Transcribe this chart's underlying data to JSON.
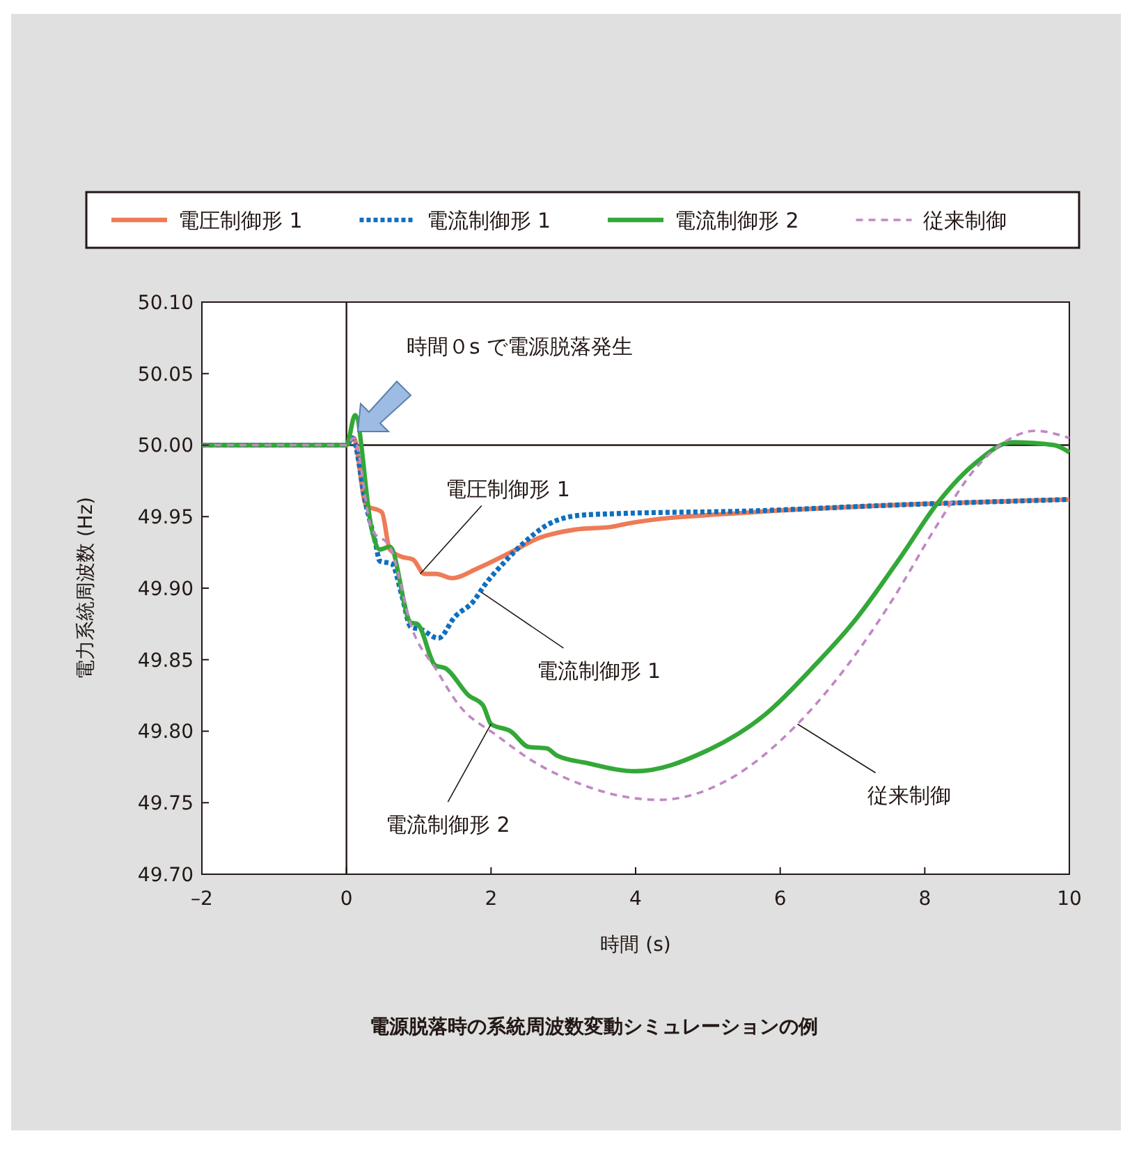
{
  "chart_data": {
    "type": "line",
    "title": "電源脱落時の系統周波数変動シミュレーションの例",
    "xlabel": "時間 (s)",
    "ylabel": "電力系統周波数 (Hz)",
    "xlim": [
      -2,
      10
    ],
    "xticks": [
      {
        "value": -2,
        "label": "–2"
      },
      0,
      2,
      4,
      6,
      8,
      10
    ],
    "ylim": [
      49.7,
      50.1
    ],
    "yticks": [
      {
        "value": 49.7,
        "label": "49.70"
      },
      49.75,
      {
        "value": 49.8,
        "label": "49.80"
      },
      49.85,
      {
        "value": 49.9,
        "label": "49.90"
      },
      49.95,
      {
        "value": 50.0,
        "label": "50.00"
      },
      50.05,
      {
        "value": 50.1,
        "label": "50.10"
      }
    ],
    "grid": false,
    "legend": "top",
    "ref_lines": [
      {
        "axis": "y",
        "value": 50.0,
        "color": "#231815"
      },
      {
        "axis": "x",
        "value": 0,
        "color": "#231815"
      }
    ],
    "annotations": [
      "時間０s で電源脱落発生",
      {
        "text": "電圧制御形 1",
        "x": 1.02,
        "y": 49.91
      },
      {
        "text": "電流制御形 1",
        "x": 1.87,
        "y": 49.897
      },
      {
        "text": "電流制御形 2",
        "x": 2.0,
        "y": 49.805
      },
      {
        "text": "従来制御",
        "x": 6.24,
        "y": 49.805
      }
    ],
    "series": [
      {
        "name": "電圧制御形 1",
        "color": "#ee7b57",
        "line_style": "solid",
        "x": [
          -2,
          0,
          0.1,
          0.27,
          0.49,
          0.6,
          0.76,
          0.92,
          1.08,
          1.24,
          1.46,
          1.82,
          2.27,
          2.66,
          3.17,
          3.68,
          3.87,
          5.6,
          7.53,
          10
        ],
        "values": [
          50.0,
          50.0,
          50.005,
          49.958,
          49.953,
          49.927,
          49.922,
          49.92,
          49.91,
          49.91,
          49.907,
          49.914,
          49.925,
          49.935,
          49.941,
          49.943,
          49.945,
          49.953,
          49.958,
          49.962
        ]
      },
      {
        "name": "電流制御形 1",
        "color": "#0f6fbf",
        "line_style": "dotted",
        "x": [
          -2,
          0,
          0.08,
          0.27,
          0.4,
          0.46,
          0.63,
          0.76,
          0.89,
          1.04,
          1.27,
          1.5,
          1.76,
          1.91,
          2.2,
          2.46,
          2.77,
          3.24,
          3.68,
          5.6,
          7.53,
          10
        ],
        "values": [
          50.0,
          50.0,
          50.005,
          49.958,
          49.932,
          49.919,
          49.917,
          49.896,
          49.873,
          49.871,
          49.865,
          49.88,
          49.891,
          49.902,
          49.919,
          49.932,
          49.944,
          49.951,
          49.952,
          49.954,
          49.958,
          49.962
        ]
      },
      {
        "name": "電流制御形 2",
        "color": "#33a838",
        "line_style": "solid",
        "x": [
          -2,
          0,
          0.12,
          0.35,
          0.46,
          0.6,
          0.89,
          0.98,
          1.23,
          1.37,
          1.69,
          1.89,
          2.0,
          2.27,
          2.52,
          2.77,
          2.91,
          3.3,
          4.0,
          4.97,
          5.8,
          6.44,
          7.01,
          7.67,
          8.17,
          8.69,
          9.21,
          9.79,
          10
        ],
        "values": [
          50.0,
          50.0,
          50.021,
          49.941,
          49.927,
          49.929,
          49.876,
          49.875,
          49.846,
          49.844,
          49.825,
          49.818,
          49.805,
          49.8,
          49.789,
          49.788,
          49.783,
          49.778,
          49.772,
          49.786,
          49.812,
          49.844,
          49.876,
          49.922,
          49.959,
          49.987,
          50.002,
          50.0,
          49.995
        ]
      },
      {
        "name": "従来制御",
        "color": "#c287c6",
        "line_style": "dashed",
        "x": [
          -2,
          0,
          0.1,
          0.35,
          0.6,
          0.92,
          1.23,
          1.56,
          2.08,
          2.58,
          3.24,
          3.87,
          4.32,
          5.28,
          6.24,
          6.9,
          7.53,
          8.17,
          8.69,
          9.13,
          9.52,
          10
        ],
        "values": [
          50.0,
          50.0,
          50.005,
          49.941,
          49.929,
          49.87,
          49.844,
          49.818,
          49.797,
          49.779,
          49.763,
          49.754,
          49.752,
          49.766,
          49.805,
          49.844,
          49.89,
          49.944,
          49.983,
          50.003,
          50.01,
          50.005
        ]
      }
    ]
  }
}
